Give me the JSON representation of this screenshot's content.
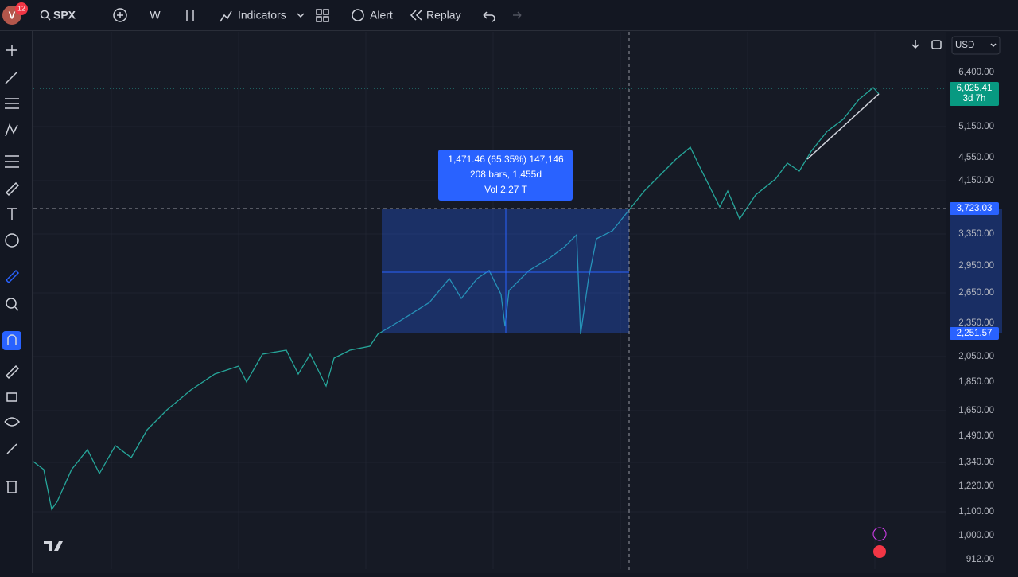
{
  "toolbar": {
    "avatar_badge": "12",
    "symbol": "SPX",
    "interval": "W",
    "indicators": "Indicators",
    "alert": "Alert",
    "replay": "Replay"
  },
  "currency": "USD",
  "price_axis": [
    "6,400.00",
    "5,150.00",
    "4,550.00",
    "4,150.00",
    "3,350.00",
    "2,950.00",
    "2,650.00",
    "2,350.00",
    "2,050.00",
    "1,850.00",
    "1,650.00",
    "1,490.00",
    "1,340.00",
    "1,220.00",
    "1,100.00",
    "1,000.00",
    "912.00"
  ],
  "badges": {
    "last_price": "6,025.41",
    "countdown": "3d 7h",
    "crosshair_price": "3,723.03",
    "range_low": "2,251.57"
  },
  "measure": {
    "line1": "1,471.46 (65.35%) 147,146",
    "line2": "208 bars, 1,455d",
    "line3": "Vol 2.27 T"
  }
}
